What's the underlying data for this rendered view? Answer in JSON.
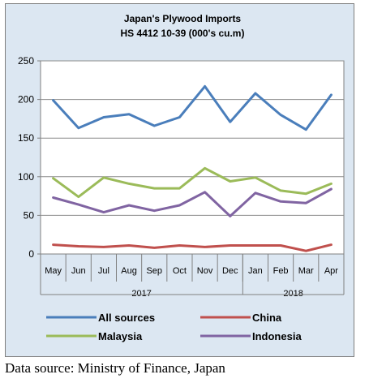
{
  "source_note": "Data source: Ministry of Finance, Japan",
  "chart_data": {
    "type": "line",
    "title": "Japan's Plywood Imports",
    "subtitle": "HS 4412 10-39  (000's cu.m)",
    "xlabel": "",
    "ylabel": "",
    "ylim": [
      0,
      250
    ],
    "yticks": [
      "0",
      "50",
      "100",
      "150",
      "200",
      "250"
    ],
    "grid": true,
    "legend_position": "bottom",
    "categories": [
      "May",
      "Jun",
      "Jul",
      "Aug",
      "Sep",
      "Oct",
      "Nov",
      "Dec",
      "Jan",
      "Feb",
      "Mar",
      "Apr"
    ],
    "year_groups": [
      {
        "label": "2017",
        "count": 8
      },
      {
        "label": "2018",
        "count": 4
      }
    ],
    "series": [
      {
        "name": "All sources",
        "color": "#4a7ebb",
        "values": [
          199,
          163,
          177,
          181,
          166,
          177,
          217,
          171,
          208,
          180,
          161,
          206
        ]
      },
      {
        "name": "China",
        "color": "#c0504d",
        "values": [
          12,
          10,
          9,
          11,
          8,
          11,
          9,
          11,
          11,
          11,
          4,
          12
        ]
      },
      {
        "name": "Malaysia",
        "color": "#9bbb59",
        "values": [
          98,
          74,
          99,
          91,
          85,
          85,
          111,
          94,
          99,
          82,
          78,
          91
        ]
      },
      {
        "name": "Indonesia",
        "color": "#8064a2",
        "values": [
          73,
          64,
          54,
          63,
          56,
          63,
          80,
          49,
          79,
          68,
          66,
          84
        ]
      }
    ]
  }
}
